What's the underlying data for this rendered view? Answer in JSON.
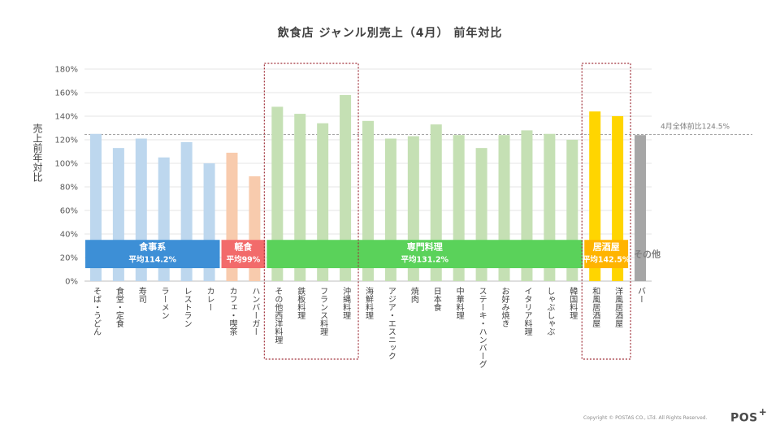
{
  "chart_data": {
    "type": "bar",
    "title": "飲食店  ジャンル別売上（4月）  前年対比",
    "ylabel": "売上前年対比",
    "xlabel": "",
    "ylim": [
      0,
      180
    ],
    "yticks": [
      "0%",
      "20%",
      "40%",
      "60%",
      "80%",
      "100%",
      "120%",
      "140%",
      "160%",
      "180%"
    ],
    "grid": true,
    "categories": [
      "そば・うどん",
      "食堂・定食",
      "寿司",
      "ラーメン",
      "レストラン",
      "カレー",
      "カフェ・喫茶",
      "ハンバーガー",
      "その他西洋料理",
      "鉄板料理",
      "フランス料理",
      "沖縄料理",
      "海鮮料理",
      "アジア・エスニック",
      "焼肉",
      "日本食",
      "中華料理",
      "ステーキ・ハンバーグ",
      "お好み焼き",
      "イタリア料理",
      "しゃぶしゃぶ",
      "韓国料理",
      "和風居酒屋",
      "洋風居酒屋",
      "バー"
    ],
    "values": [
      125,
      113,
      121,
      105,
      118,
      100,
      109,
      89,
      148,
      142,
      134,
      158,
      136,
      121,
      123,
      133,
      124,
      113,
      124,
      128,
      125,
      120,
      144,
      140,
      124
    ],
    "bar_colors": [
      "#bdd7ee",
      "#bdd7ee",
      "#bdd7ee",
      "#bdd7ee",
      "#bdd7ee",
      "#bdd7ee",
      "#f8cbad",
      "#f8cbad",
      "#c5e0b4",
      "#c5e0b4",
      "#c5e0b4",
      "#c5e0b4",
      "#c5e0b4",
      "#c5e0b4",
      "#c5e0b4",
      "#c5e0b4",
      "#c5e0b4",
      "#c5e0b4",
      "#c5e0b4",
      "#c5e0b4",
      "#c5e0b4",
      "#c5e0b4",
      "#ffd500",
      "#ffd500",
      "#a6a6a6"
    ],
    "groups": [
      {
        "name": "食事系",
        "average": "平均114.2%",
        "start": 0,
        "end": 5,
        "color": "#3d8fd6"
      },
      {
        "name": "軽食",
        "average": "平均99%",
        "start": 6,
        "end": 7,
        "color": "#f26b6b"
      },
      {
        "name": "専門料理",
        "average": "平均131.2%",
        "start": 8,
        "end": 21,
        "color": "#5ad25a"
      },
      {
        "name": "居酒屋",
        "average": "平均142.5%",
        "start": 22,
        "end": 23,
        "color": "#ffb400"
      }
    ],
    "other_label": "その他",
    "reference": {
      "value": 124.5,
      "label": "4月全体前比124.5%",
      "color": "#a6a6a6"
    },
    "highlight_boxes": [
      {
        "start": 8,
        "end": 11,
        "color": "#a0303a"
      },
      {
        "start": 22,
        "end": 23,
        "color": "#a0303a"
      }
    ]
  },
  "footer": {
    "copyright": "Copyright © POSTAS CO., LTd. All Rights Reserved.",
    "logo": "POS",
    "logo_mark": "+"
  }
}
